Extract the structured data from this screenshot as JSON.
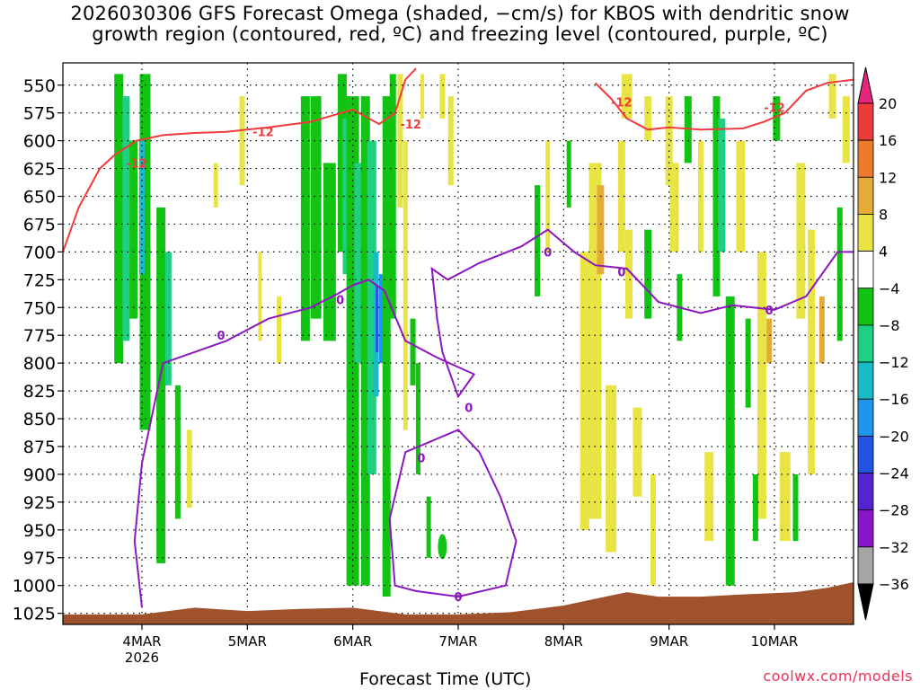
{
  "title": {
    "line1": "2026030306 GFS Forecast Omega (shaded, −cm/s) for KBOS with dendritic snow",
    "line2": "growth region (contoured, red, ºC) and freezing level (contoured, purple, ºC)"
  },
  "credit": "coolwx.com/models",
  "chart_data": {
    "type": "heatmap",
    "title": "2026030306 GFS Forecast Omega (shaded, −cm/s) for KBOS with dendritic snow growth region (contoured, red, ºC) and freezing level (contoured, purple, ºC)",
    "xlabel": "Forecast Time (UTC)",
    "ylabel": "",
    "x_ticks": [
      "4MAR",
      "5MAR",
      "6MAR",
      "7MAR",
      "8MAR",
      "9MAR",
      "10MAR"
    ],
    "x_tick_sublabel": {
      "tick": "4MAR",
      "text": "2026"
    },
    "x_range_days": [
      3.25,
      10.75
    ],
    "y_ticks": [
      550,
      575,
      600,
      625,
      650,
      675,
      700,
      725,
      750,
      775,
      800,
      825,
      850,
      875,
      900,
      925,
      950,
      975,
      1000,
      1025
    ],
    "y_range": [
      530,
      1035
    ],
    "y_units": "hPa",
    "colorbar": {
      "labels": [
        "20",
        "16",
        "12",
        "8",
        "4",
        "−4",
        "−8",
        "−12",
        "−16",
        "−20",
        "−24",
        "−28",
        "−32",
        "−36"
      ],
      "colors": [
        "#e6257d",
        "#ec3b3b",
        "#ec7a2b",
        "#e5ab39",
        "#e8e444",
        "#ffffff",
        "#13c313",
        "#1fcf83",
        "#19bcc4",
        "#1e96eb",
        "#2554e5",
        "#5523d0",
        "#8a16c9",
        "#a5a5a5",
        "#000000"
      ]
    },
    "contours": {
      "dendritic_label": "-12",
      "dendritic_color": "#ef3b3b",
      "freezing_label": "0",
      "freezing_color": "#8c17c0",
      "dendritic_12C_hPa": [
        [
          3.25,
          700
        ],
        [
          3.4,
          660
        ],
        [
          3.6,
          625
        ],
        [
          3.75,
          612
        ],
        [
          3.95,
          600
        ],
        [
          4.2,
          595
        ],
        [
          4.5,
          593
        ],
        [
          4.8,
          592
        ],
        [
          5.2,
          588
        ],
        [
          5.6,
          583
        ],
        [
          6.0,
          572
        ],
        [
          6.25,
          585
        ],
        [
          6.4,
          575
        ],
        [
          6.5,
          545
        ],
        [
          6.6,
          535
        ],
        [
          8.3,
          548
        ],
        [
          8.45,
          562
        ],
        [
          8.6,
          580
        ],
        [
          8.8,
          590
        ],
        [
          9.0,
          588
        ],
        [
          9.3,
          590
        ],
        [
          9.7,
          589
        ],
        [
          9.9,
          583
        ],
        [
          10.1,
          575
        ],
        [
          10.3,
          555
        ],
        [
          10.5,
          548
        ],
        [
          10.75,
          545
        ]
      ],
      "freezing_main_hPa": [
        [
          4.0,
          1020
        ],
        [
          3.93,
          960
        ],
        [
          4.0,
          890
        ],
        [
          4.2,
          800
        ],
        [
          4.5,
          790
        ],
        [
          4.8,
          780
        ],
        [
          5.2,
          760
        ],
        [
          5.6,
          750
        ],
        [
          5.85,
          738
        ],
        [
          6.0,
          730
        ],
        [
          6.15,
          725
        ],
        [
          6.3,
          735
        ],
        [
          6.5,
          780
        ],
        [
          6.8,
          795
        ],
        [
          7.15,
          810
        ],
        [
          7.0,
          830
        ],
        [
          6.85,
          790
        ],
        [
          6.8,
          760
        ],
        [
          6.75,
          715
        ],
        [
          6.9,
          725
        ],
        [
          7.2,
          710
        ],
        [
          7.6,
          695
        ],
        [
          7.85,
          680
        ],
        [
          8.1,
          700
        ],
        [
          8.3,
          712
        ],
        [
          8.6,
          715
        ],
        [
          8.9,
          745
        ],
        [
          9.3,
          755
        ],
        [
          9.6,
          748
        ],
        [
          10.0,
          752
        ],
        [
          10.3,
          740
        ],
        [
          10.6,
          700
        ],
        [
          10.75,
          700
        ]
      ],
      "freezing_low_hPa": [
        [
          6.4,
          1000
        ],
        [
          6.35,
          940
        ],
        [
          6.5,
          880
        ],
        [
          6.75,
          870
        ],
        [
          7.0,
          860
        ],
        [
          7.2,
          880
        ],
        [
          7.4,
          920
        ],
        [
          7.55,
          960
        ],
        [
          7.45,
          1000
        ],
        [
          7.0,
          1010
        ],
        [
          6.6,
          1005
        ],
        [
          6.4,
          1000
        ]
      ]
    }
  }
}
